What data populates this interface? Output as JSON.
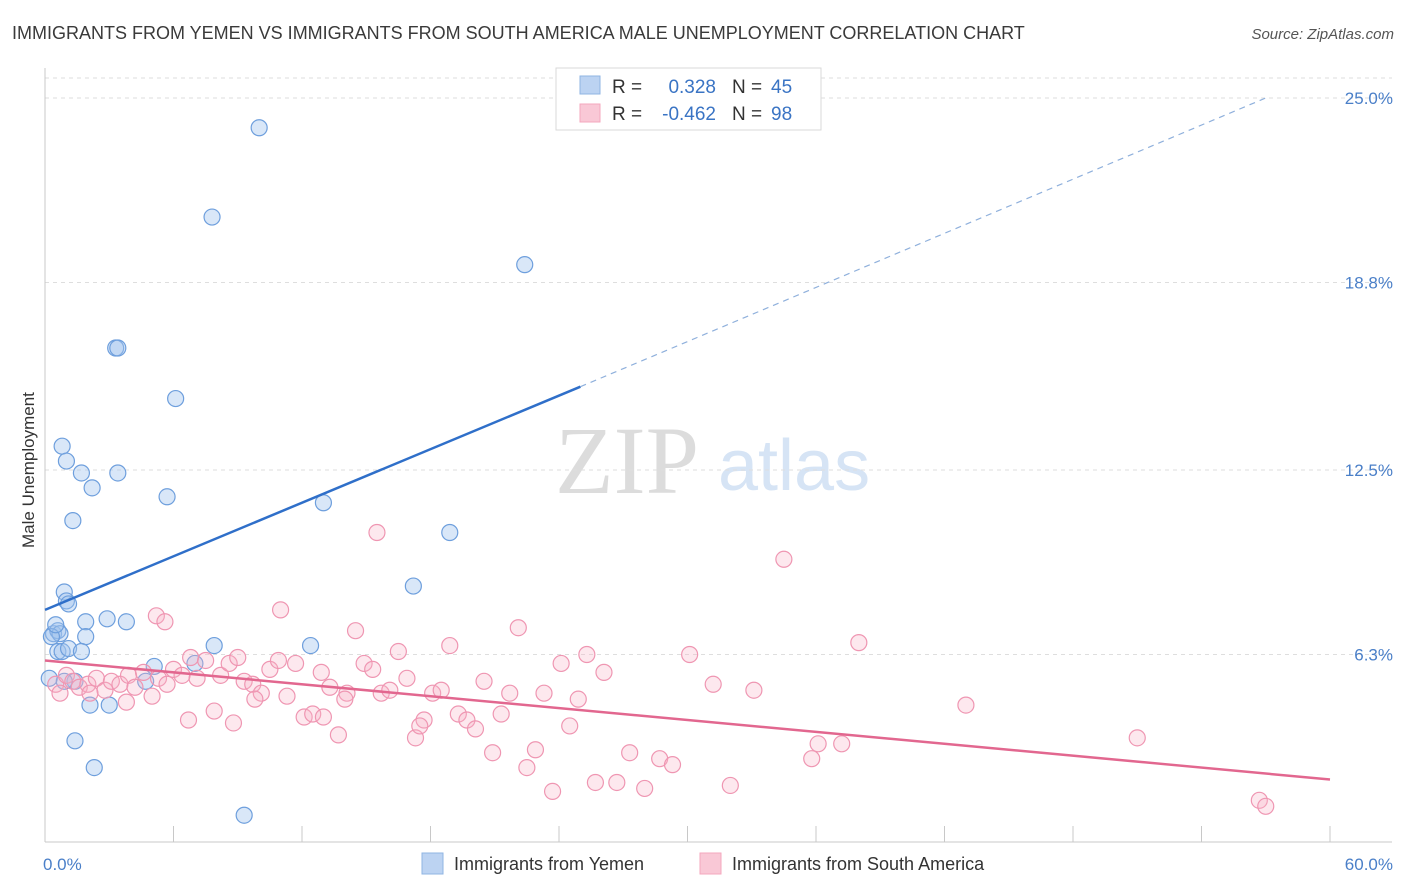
{
  "chart_data": {
    "type": "scatter",
    "title": "IMMIGRANTS FROM YEMEN VS IMMIGRANTS FROM SOUTH AMERICA MALE UNEMPLOYMENT CORRELATION CHART",
    "source": "Source: ZipAtlas.com",
    "xlabel": "",
    "ylabel": "Male Unemployment",
    "xlim": [
      0,
      60
    ],
    "ylim": [
      0,
      25
    ],
    "x_tick_labels": [
      "0.0%",
      "60.0%"
    ],
    "y_ticks": [
      6.3,
      12.5,
      18.8,
      25.0
    ],
    "y_tick_labels": [
      "6.3%",
      "12.5%",
      "18.8%",
      "25.0%"
    ],
    "watermark": {
      "zip": "ZIP",
      "atlas": "atlas"
    },
    "stats": [
      {
        "r_label": "R =",
        "r_value": "0.328",
        "n_label": "N =",
        "n_value": "45"
      },
      {
        "r_label": "R =",
        "r_value": "-0.462",
        "n_label": "N =",
        "n_value": "98"
      }
    ],
    "series": [
      {
        "name": "Immigrants from Yemen",
        "color": "#8fb4e3",
        "line_color": "#2f6fc9",
        "trend": {
          "x0": 0,
          "y0": 7.8,
          "x1": 25,
          "y1": 15.3,
          "x_dash_end": 57,
          "y_dash_end": 25.0
        },
        "points": [
          [
            10.0,
            24.0
          ],
          [
            7.8,
            21.0
          ],
          [
            22.4,
            19.4
          ],
          [
            3.3,
            16.6
          ],
          [
            3.4,
            16.6
          ],
          [
            6.1,
            14.9
          ],
          [
            0.8,
            13.3
          ],
          [
            1.0,
            12.8
          ],
          [
            1.7,
            12.4
          ],
          [
            3.4,
            12.4
          ],
          [
            2.2,
            11.9
          ],
          [
            5.7,
            11.6
          ],
          [
            13.0,
            11.4
          ],
          [
            1.3,
            10.8
          ],
          [
            18.9,
            10.4
          ],
          [
            0.9,
            8.4
          ],
          [
            17.2,
            8.6
          ],
          [
            1.0,
            8.1
          ],
          [
            1.1,
            8.0
          ],
          [
            1.9,
            7.4
          ],
          [
            2.9,
            7.5
          ],
          [
            3.8,
            7.4
          ],
          [
            0.4,
            7.0
          ],
          [
            0.6,
            7.1
          ],
          [
            0.7,
            7.0
          ],
          [
            1.9,
            6.9
          ],
          [
            0.6,
            6.4
          ],
          [
            0.8,
            6.4
          ],
          [
            1.1,
            6.5
          ],
          [
            1.7,
            6.4
          ],
          [
            7.9,
            6.6
          ],
          [
            12.4,
            6.6
          ],
          [
            5.1,
            5.9
          ],
          [
            7.0,
            6.0
          ],
          [
            1.4,
            5.4
          ],
          [
            4.7,
            5.4
          ],
          [
            0.2,
            5.5
          ],
          [
            2.1,
            4.6
          ],
          [
            3.0,
            4.6
          ],
          [
            1.4,
            3.4
          ],
          [
            2.3,
            2.5
          ],
          [
            9.3,
            0.9
          ],
          [
            0.9,
            5.4
          ],
          [
            0.3,
            6.9
          ],
          [
            0.5,
            7.3
          ]
        ]
      },
      {
        "name": "Immigrants from South America",
        "color": "#f4a7be",
        "line_color": "#e2678f",
        "trend": {
          "x0": 0,
          "y0": 6.1,
          "x1": 60,
          "y1": 2.1
        },
        "points": [
          [
            0.5,
            5.3
          ],
          [
            0.7,
            5.0
          ],
          [
            1.0,
            5.6
          ],
          [
            1.3,
            5.4
          ],
          [
            1.6,
            5.2
          ],
          [
            2.0,
            5.3
          ],
          [
            2.4,
            5.5
          ],
          [
            2.8,
            5.1
          ],
          [
            3.1,
            5.4
          ],
          [
            3.5,
            5.3
          ],
          [
            3.9,
            5.6
          ],
          [
            4.2,
            5.2
          ],
          [
            4.6,
            5.7
          ],
          [
            5.0,
            4.9
          ],
          [
            5.3,
            5.5
          ],
          [
            5.7,
            5.3
          ],
          [
            6.0,
            5.8
          ],
          [
            6.4,
            5.6
          ],
          [
            6.8,
            6.2
          ],
          [
            7.1,
            5.5
          ],
          [
            7.5,
            6.1
          ],
          [
            7.9,
            4.4
          ],
          [
            8.2,
            5.6
          ],
          [
            8.6,
            6.0
          ],
          [
            9.0,
            6.2
          ],
          [
            9.3,
            5.4
          ],
          [
            9.7,
            5.3
          ],
          [
            10.1,
            5.0
          ],
          [
            10.5,
            5.8
          ],
          [
            10.9,
            6.1
          ],
          [
            11.3,
            4.9
          ],
          [
            11.7,
            6.0
          ],
          [
            12.1,
            4.2
          ],
          [
            12.5,
            4.3
          ],
          [
            12.9,
            5.7
          ],
          [
            13.3,
            5.2
          ],
          [
            13.7,
            3.6
          ],
          [
            14.1,
            5.0
          ],
          [
            14.5,
            7.1
          ],
          [
            14.9,
            6.0
          ],
          [
            15.3,
            5.8
          ],
          [
            15.7,
            5.0
          ],
          [
            16.1,
            5.1
          ],
          [
            16.5,
            6.4
          ],
          [
            16.9,
            5.5
          ],
          [
            17.3,
            3.5
          ],
          [
            17.7,
            4.1
          ],
          [
            18.1,
            5.0
          ],
          [
            18.5,
            5.1
          ],
          [
            18.9,
            6.6
          ],
          [
            19.3,
            4.3
          ],
          [
            19.7,
            4.1
          ],
          [
            20.1,
            3.8
          ],
          [
            20.5,
            5.4
          ],
          [
            20.9,
            3.0
          ],
          [
            21.3,
            4.3
          ],
          [
            21.7,
            5.0
          ],
          [
            22.1,
            7.2
          ],
          [
            22.5,
            2.5
          ],
          [
            22.9,
            3.1
          ],
          [
            23.3,
            5.0
          ],
          [
            23.7,
            1.7
          ],
          [
            24.1,
            6.0
          ],
          [
            24.5,
            3.9
          ],
          [
            24.9,
            4.8
          ],
          [
            25.3,
            6.3
          ],
          [
            25.7,
            2.0
          ],
          [
            26.1,
            5.7
          ],
          [
            26.7,
            2.0
          ],
          [
            27.3,
            3.0
          ],
          [
            28.0,
            1.8
          ],
          [
            28.7,
            2.8
          ],
          [
            29.3,
            2.6
          ],
          [
            30.1,
            6.3
          ],
          [
            31.2,
            5.3
          ],
          [
            32.0,
            1.9
          ],
          [
            33.1,
            5.1
          ],
          [
            34.5,
            9.5
          ],
          [
            35.8,
            2.8
          ],
          [
            36.1,
            3.3
          ],
          [
            37.2,
            3.3
          ],
          [
            38.0,
            6.7
          ],
          [
            8.8,
            4.0
          ],
          [
            11.0,
            7.8
          ],
          [
            13.0,
            4.2
          ],
          [
            15.5,
            10.4
          ],
          [
            3.8,
            4.7
          ],
          [
            5.2,
            7.6
          ],
          [
            5.6,
            7.4
          ],
          [
            9.8,
            4.8
          ],
          [
            6.7,
            4.1
          ],
          [
            2.1,
            5.0
          ],
          [
            43.0,
            4.6
          ],
          [
            51.0,
            3.5
          ],
          [
            56.7,
            1.4
          ],
          [
            57.0,
            1.2
          ],
          [
            14.0,
            4.8
          ],
          [
            17.5,
            3.9
          ]
        ]
      }
    ]
  }
}
